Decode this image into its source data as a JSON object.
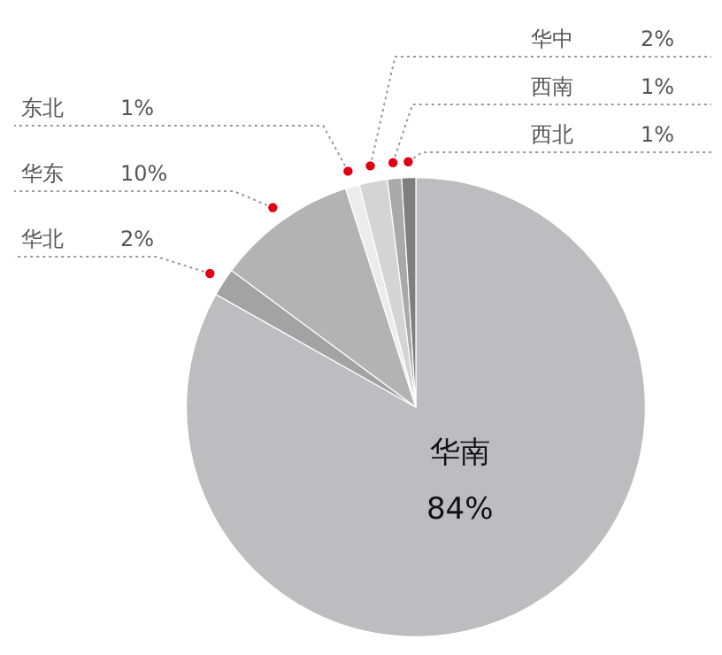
{
  "chart_data": {
    "type": "pie",
    "categories": [
      "华南",
      "华北",
      "华东",
      "东北",
      "华中",
      "西南",
      "西北"
    ],
    "values": [
      84,
      2,
      10,
      1,
      2,
      1,
      1
    ],
    "value_labels": [
      "84%",
      "2%",
      "10%",
      "1%",
      "2%",
      "1%",
      "1%"
    ],
    "colors": [
      "#bdbdbf",
      "#a3a3a3",
      "#b3b3b3",
      "#ececec",
      "#d4d4d4",
      "#a9a9a9",
      "#7f7f7f"
    ],
    "legend": false
  }
}
